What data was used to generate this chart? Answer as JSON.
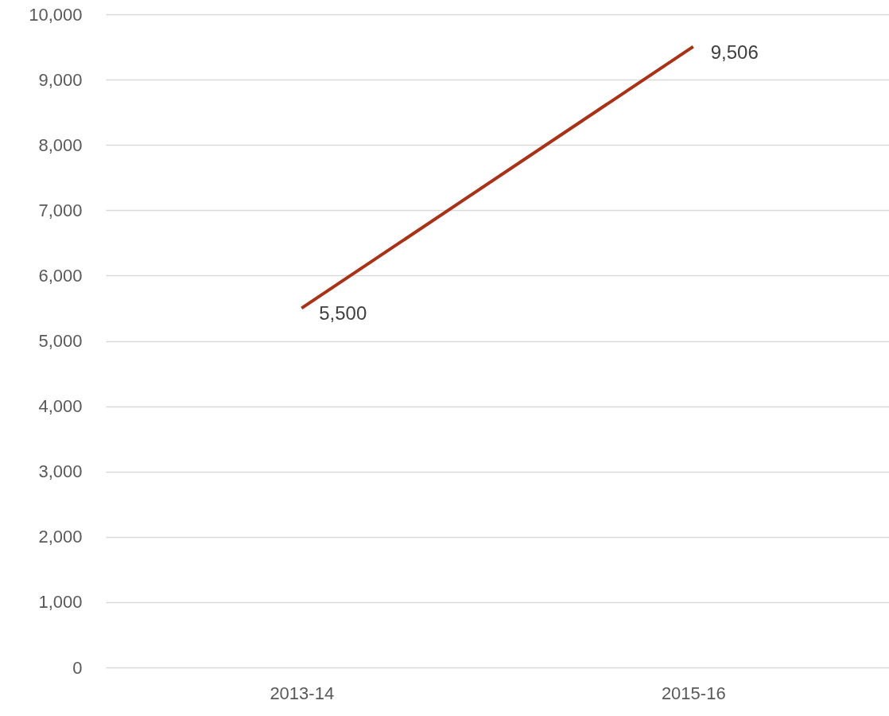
{
  "chart_data": {
    "type": "line",
    "categories": [
      "2013-14",
      "2015-16"
    ],
    "series": [
      {
        "color": "#a83218",
        "values": [
          5500,
          9506
        ],
        "value_labels": [
          "5,500",
          "9,506"
        ]
      }
    ],
    "ylim": [
      0,
      10000
    ],
    "yticks": [
      0,
      {
        "value": 1000,
        "label": "1,000"
      },
      {
        "value": 2000,
        "label": "2,000"
      },
      {
        "value": 3000,
        "label": "3,000"
      },
      {
        "value": 4000,
        "label": "4,000"
      },
      {
        "value": 5000,
        "label": "5,000"
      },
      {
        "value": 6000,
        "label": "6,000"
      },
      {
        "value": 7000,
        "label": "7,000"
      },
      {
        "value": 8000,
        "label": "8,000"
      },
      {
        "value": 9000,
        "label": "9,000"
      },
      {
        "value": 10000,
        "label": "10,000"
      }
    ],
    "grid": "y",
    "marker": "none",
    "line_style": "solid"
  }
}
